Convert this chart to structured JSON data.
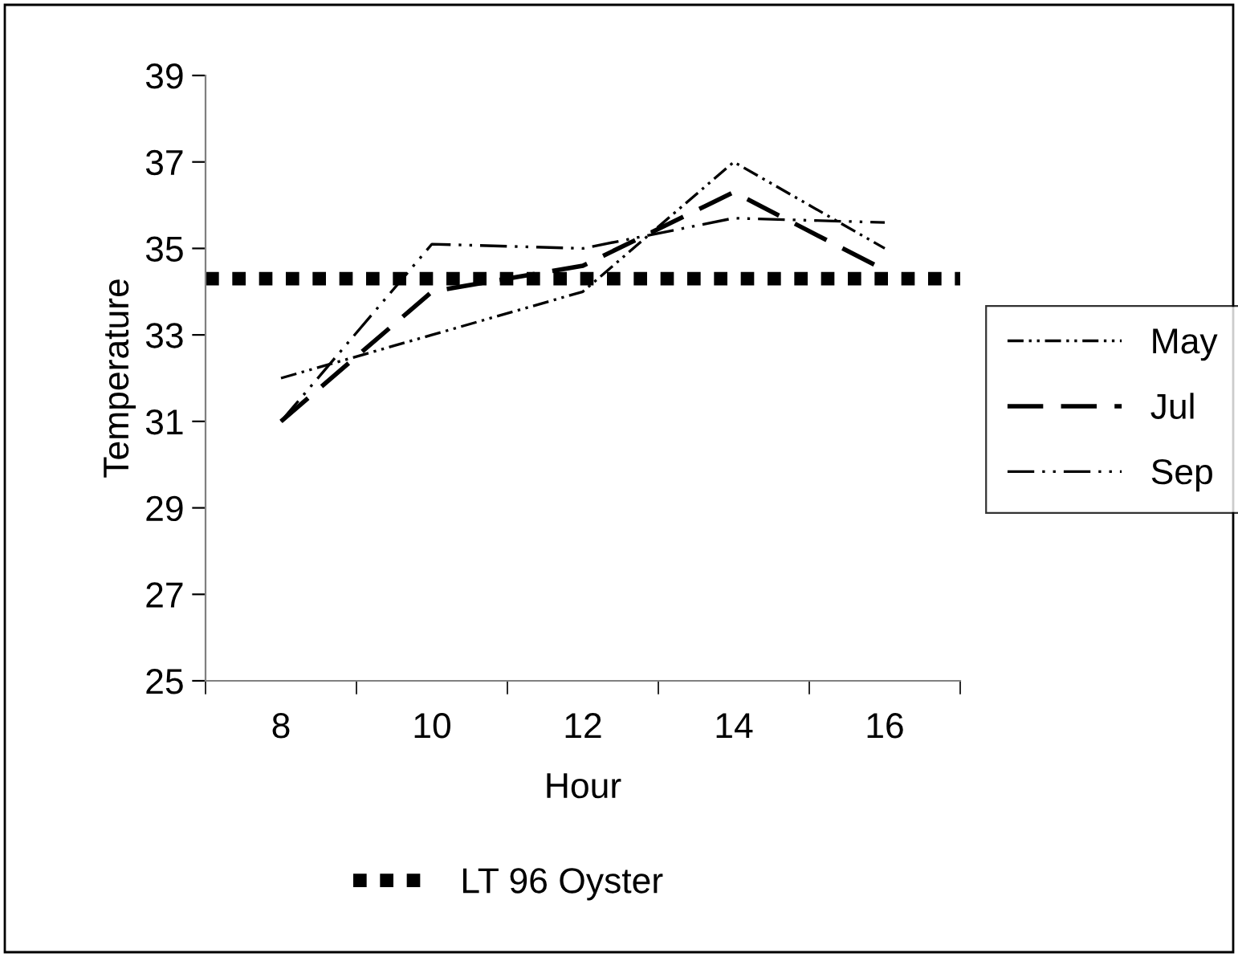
{
  "chart_data": {
    "type": "line",
    "xlabel": "Hour",
    "ylabel": "Temperature",
    "categories": [
      "8",
      "10",
      "12",
      "14",
      "16"
    ],
    "series": [
      {
        "name": "May",
        "color": "#000000",
        "line_style": "dashed",
        "values": [
          32.0,
          33.0,
          34.0,
          37.0,
          35.0
        ]
      },
      {
        "name": "Jul",
        "color": "#000000",
        "line_style": "dashed",
        "values": [
          31.0,
          34.0,
          34.6,
          36.3,
          34.5
        ]
      },
      {
        "name": "Sep",
        "color": "#000000",
        "line_style": "dashed",
        "values": [
          31.0,
          35.1,
          35.0,
          35.7,
          35.6
        ]
      }
    ],
    "ylim": [
      25,
      39
    ],
    "yticks": [
      25,
      27,
      29,
      31,
      33,
      35,
      37,
      39
    ],
    "ref_lines": [
      {
        "axis": "y",
        "value": 34.3,
        "label": "LT 96 Oyster",
        "color": "#000000",
        "line_style": "dotted"
      }
    ],
    "grid": false,
    "legend": "right",
    "marker": "none"
  }
}
